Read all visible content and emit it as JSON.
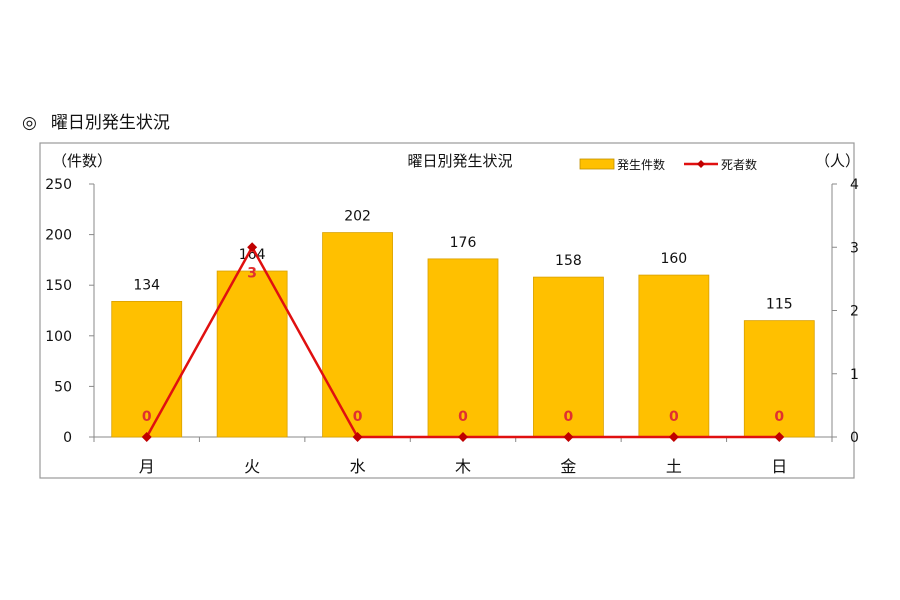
{
  "section_heading": {
    "marker": "◎",
    "text": "曜日別発生状況"
  },
  "chart_data": {
    "type": "bar",
    "title": "曜日別発生状況",
    "categories": [
      "月",
      "火",
      "水",
      "木",
      "金",
      "土",
      "日"
    ],
    "series": [
      {
        "name": "発生件数",
        "kind": "bar",
        "axis": "left",
        "color": "#FFC000",
        "values": [
          134,
          164,
          202,
          176,
          158,
          160,
          115
        ]
      },
      {
        "name": "死者数",
        "kind": "line",
        "axis": "right",
        "color": "#E01010",
        "values": [
          0,
          3,
          0,
          0,
          0,
          0,
          0
        ]
      }
    ],
    "ylabel": "（件数）",
    "y2label": "（人）",
    "ylim": [
      0,
      250
    ],
    "yticks": [
      0,
      50,
      100,
      150,
      200,
      250
    ],
    "y2lim": [
      0,
      4
    ],
    "y2ticks": [
      0,
      1,
      2,
      3,
      4
    ],
    "grid": false,
    "legend": "top-right"
  }
}
